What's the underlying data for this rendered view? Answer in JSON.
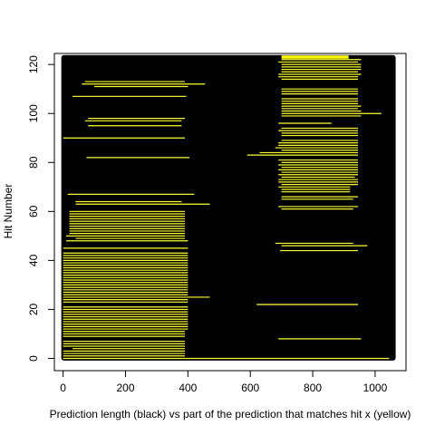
{
  "chart_data": {
    "type": "segments",
    "xlabel": "Prediction length (black) vs part of the prediction that matches hit x (yellow)",
    "ylabel": "Hit Number",
    "x_ticks": [
      0,
      200,
      400,
      600,
      800,
      1000
    ],
    "y_ticks": [
      0,
      20,
      40,
      60,
      80,
      100,
      120
    ],
    "xlim": [
      -28,
      1099
    ],
    "ylim": [
      -5,
      124.5
    ],
    "n_hits": 124,
    "prediction_length": [
      0,
      1060
    ],
    "colors": {
      "prediction": "#000000",
      "match": "#ffff00",
      "match_line": "#ffff33",
      "frame": "#000000"
    },
    "matches": [
      [
        0,
        1045
      ],
      [
        0,
        390
      ],
      [
        0,
        390
      ],
      [
        0,
        390
      ],
      [
        30,
        390
      ],
      [
        0,
        390
      ],
      [
        0,
        390
      ],
      [
        0,
        390
      ],
      [
        690,
        955
      ],
      [
        0,
        390
      ],
      [
        0,
        390
      ],
      [
        0,
        390
      ],
      [
        0,
        400
      ],
      [
        0,
        400
      ],
      [
        0,
        400
      ],
      [
        0,
        400
      ],
      [
        0,
        400
      ],
      [
        0,
        400
      ],
      [
        0,
        400
      ],
      [
        0,
        400
      ],
      [
        0,
        400
      ],
      [
        0,
        400
      ],
      [
        620,
        945
      ],
      [
        0,
        400
      ],
      [
        0,
        400
      ],
      [
        0,
        470
      ],
      [
        0,
        400
      ],
      [
        0,
        400
      ],
      [
        0,
        400
      ],
      [
        0,
        400
      ],
      [
        0,
        400
      ],
      [
        0,
        400
      ],
      [
        0,
        400
      ],
      [
        0,
        400
      ],
      [
        0,
        400
      ],
      [
        0,
        400
      ],
      [
        0,
        400
      ],
      [
        0,
        400
      ],
      [
        0,
        400
      ],
      [
        0,
        400
      ],
      [
        0,
        400
      ],
      [
        0,
        400
      ],
      [
        0,
        400
      ],
      [
        0,
        400
      ],
      [
        695,
        945
      ],
      [
        0,
        400
      ],
      [
        700,
        975
      ],
      [
        680,
        930
      ],
      [
        10,
        400
      ],
      [
        40,
        390
      ],
      [
        10,
        390
      ],
      [
        20,
        390
      ],
      [
        20,
        390
      ],
      [
        20,
        390
      ],
      [
        20,
        390
      ],
      [
        20,
        390
      ],
      [
        20,
        390
      ],
      [
        20,
        390
      ],
      [
        20,
        390
      ],
      [
        20,
        390
      ],
      [
        20,
        390
      ],
      [
        700,
        930
      ],
      [
        690,
        945
      ],
      [
        40,
        470
      ],
      [
        40,
        380
      ],
      [
        700,
        930
      ],
      [
        700,
        945
      ],
      [
        15,
        420
      ],
      [
        700,
        920
      ],
      [
        700,
        920
      ],
      [
        690,
        920
      ],
      [
        700,
        945
      ],
      [
        690,
        945
      ],
      [
        690,
        945
      ],
      [
        700,
        935
      ],
      [
        690,
        945
      ],
      [
        700,
        945
      ],
      [
        690,
        945
      ],
      [
        700,
        945
      ],
      [
        690,
        945
      ],
      [
        700,
        945
      ],
      [
        690,
        945
      ],
      [
        75,
        405
      ],
      [
        590,
        945
      ],
      [
        630,
        945
      ],
      [
        700,
        945
      ],
      [
        680,
        945
      ],
      [
        690,
        945
      ],
      [
        690,
        945
      ],
      [
        700,
        945
      ],
      [
        0,
        390
      ],
      [
        700,
        945
      ],
      [
        700,
        945
      ],
      [
        690,
        945
      ],
      [
        700,
        945
      ],
      [
        80,
        380
      ],
      [
        690,
        860
      ],
      [
        70,
        380
      ],
      [
        80,
        390
      ],
      [
        700,
        955
      ],
      [
        700,
        1020
      ],
      [
        700,
        955
      ],
      [
        700,
        945
      ],
      [
        700,
        955
      ],
      [
        700,
        945
      ],
      [
        700,
        945
      ],
      [
        700,
        945
      ],
      [
        30,
        395
      ],
      [
        700,
        945
      ],
      [
        700,
        945
      ],
      [
        700,
        945
      ],
      [
        100,
        400
      ],
      [
        60,
        455
      ],
      [
        70,
        390
      ],
      [
        700,
        945
      ],
      [
        690,
        945
      ],
      [
        690,
        955
      ],
      [
        700,
        945
      ],
      [
        700,
        955
      ],
      [
        700,
        955
      ],
      [
        700,
        955
      ],
      [
        690,
        945
      ],
      [
        700,
        955
      ],
      [
        700,
        915
      ]
    ]
  }
}
